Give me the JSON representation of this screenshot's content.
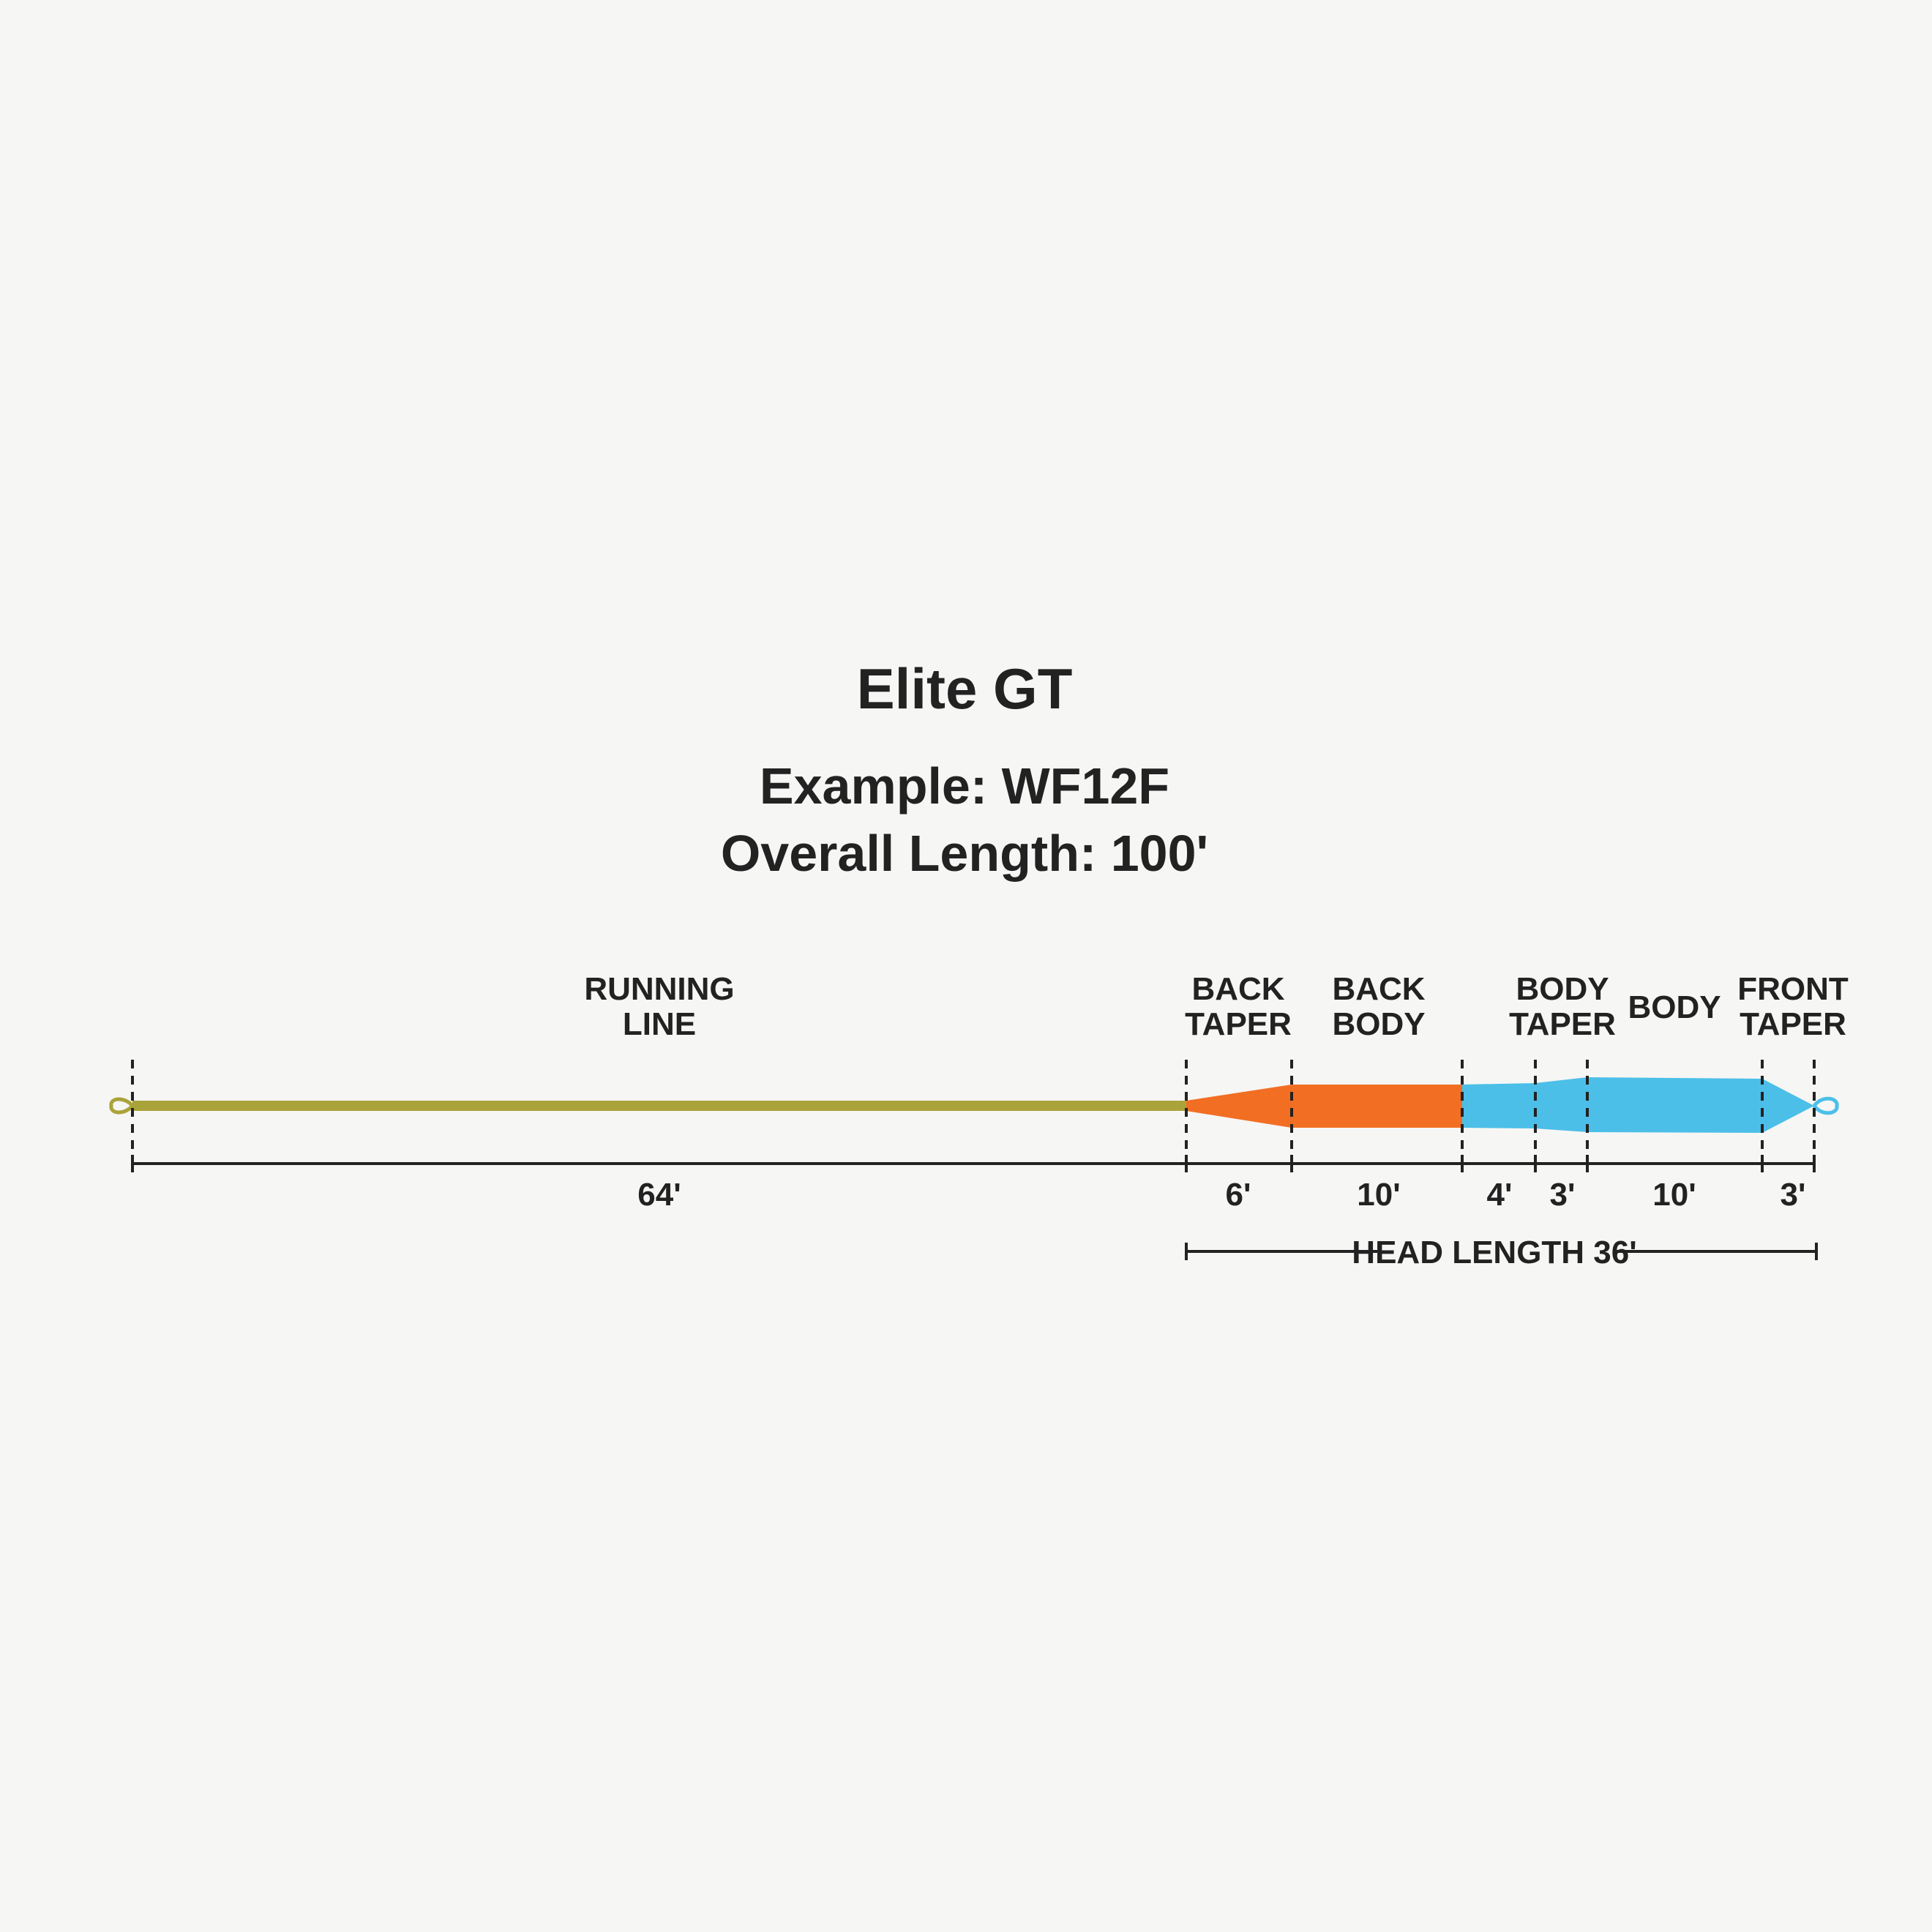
{
  "title": "Elite GT",
  "example": "Example: WF12F",
  "overall_length": "Overall Length: 100'",
  "colors": {
    "background": "#f6f6f4",
    "running_line": "#a9a33a",
    "rear_head": "#f26e23",
    "front_head": "#4bbfe8",
    "ink": "#222222"
  },
  "segments": [
    {
      "label_line1": "RUNNING",
      "label_line2": "LINE",
      "length": "64'",
      "feet": 64,
      "color": "#a9a33a"
    },
    {
      "label_line1": "BACK",
      "label_line2": "TAPER",
      "length": "6'",
      "feet": 6,
      "color": "#f26e23"
    },
    {
      "label_line1": "BACK",
      "label_line2": "BODY",
      "length": "10'",
      "feet": 10,
      "color": "#f26e23"
    },
    {
      "label_line1": "",
      "label_line2": "",
      "length": "4'",
      "feet": 4,
      "color": "#4bbfe8"
    },
    {
      "label_line1": "BODY",
      "label_line2": "TAPER",
      "length": "3'",
      "feet": 3,
      "color": "#4bbfe8"
    },
    {
      "label_line1": "BODY",
      "label_line2": "",
      "length": "10'",
      "feet": 10,
      "color": "#4bbfe8"
    },
    {
      "label_line1": "FRONT",
      "label_line2": "TAPER",
      "length": "3'",
      "feet": 3,
      "color": "#4bbfe8"
    }
  ],
  "head_length": "HEAD LENGTH 36'"
}
